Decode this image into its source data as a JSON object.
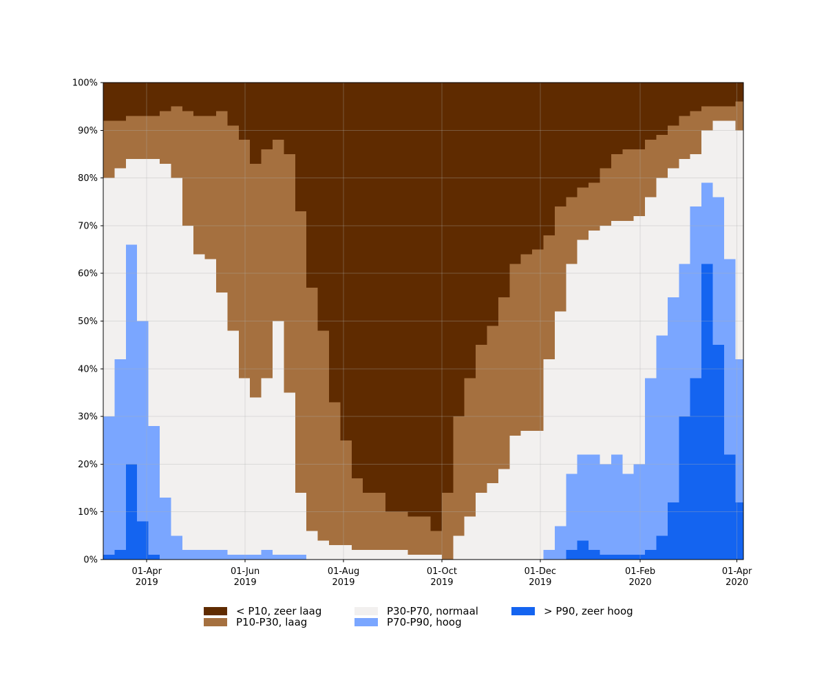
{
  "chart_data": {
    "type": "area",
    "stacked": true,
    "step": true,
    "grid": true,
    "legend": "below",
    "x": [
      "2019-03-05",
      "2019-03-12",
      "2019-03-19",
      "2019-03-26",
      "2019-04-02",
      "2019-04-09",
      "2019-04-16",
      "2019-04-23",
      "2019-04-30",
      "2019-05-07",
      "2019-05-14",
      "2019-05-21",
      "2019-05-28",
      "2019-06-04",
      "2019-06-11",
      "2019-06-18",
      "2019-06-25",
      "2019-07-02",
      "2019-07-09",
      "2019-07-16",
      "2019-07-23",
      "2019-07-30",
      "2019-08-06",
      "2019-08-13",
      "2019-08-20",
      "2019-08-27",
      "2019-09-03",
      "2019-09-10",
      "2019-09-17",
      "2019-09-24",
      "2019-10-01",
      "2019-10-08",
      "2019-10-15",
      "2019-10-22",
      "2019-10-29",
      "2019-11-05",
      "2019-11-12",
      "2019-11-19",
      "2019-11-26",
      "2019-12-03",
      "2019-12-10",
      "2019-12-17",
      "2019-12-24",
      "2019-12-31",
      "2020-01-07",
      "2020-01-14",
      "2020-01-21",
      "2020-01-28",
      "2020-02-04",
      "2020-02-11",
      "2020-02-18",
      "2020-02-25",
      "2020-03-03",
      "2020-03-10",
      "2020-03-17",
      "2020-03-24",
      "2020-03-31"
    ],
    "xlim": [
      "2019-03-05",
      "2020-04-05"
    ],
    "xticks": [
      {
        "value": "2019-04-01",
        "label": "01-Apr\n2019"
      },
      {
        "value": "2019-06-01",
        "label": "01-Jun\n2019"
      },
      {
        "value": "2019-08-01",
        "label": "01-Aug\n2019"
      },
      {
        "value": "2019-10-01",
        "label": "01-Oct\n2019"
      },
      {
        "value": "2019-12-01",
        "label": "01-Dec\n2019"
      },
      {
        "value": "2020-02-01",
        "label": "01-Feb\n2020"
      },
      {
        "value": "2020-04-01",
        "label": "01-Apr\n2020"
      }
    ],
    "ylim": [
      0,
      100
    ],
    "yticks": [
      {
        "value": 0,
        "label": "0%"
      },
      {
        "value": 10,
        "label": "10%"
      },
      {
        "value": 20,
        "label": "20%"
      },
      {
        "value": 30,
        "label": "30%"
      },
      {
        "value": 40,
        "label": "40%"
      },
      {
        "value": 50,
        "label": "50%"
      },
      {
        "value": 60,
        "label": "60%"
      },
      {
        "value": 70,
        "label": "70%"
      },
      {
        "value": 80,
        "label": "80%"
      },
      {
        "value": 90,
        "label": "90%"
      },
      {
        "value": 100,
        "label": "100%"
      }
    ],
    "series": [
      {
        "name": "< P10, zeer laag",
        "color": "#5f2b00",
        "values": [
          8,
          8,
          7,
          7,
          7,
          6,
          5,
          6,
          7,
          7,
          6,
          9,
          12,
          17,
          14,
          12,
          15,
          27,
          43,
          52,
          67,
          75,
          83,
          86,
          86,
          90,
          90,
          91,
          91,
          94,
          86,
          70,
          62,
          55,
          51,
          45,
          38,
          36,
          35,
          32,
          26,
          24,
          22,
          21,
          18,
          15,
          14,
          14,
          12,
          11,
          9,
          7,
          6,
          5,
          5,
          5,
          4
        ]
      },
      {
        "name": "P10-P30, laag",
        "color": "#a5703f",
        "values": [
          12,
          10,
          9,
          9,
          9,
          11,
          15,
          24,
          29,
          30,
          38,
          43,
          50,
          49,
          48,
          38,
          50,
          59,
          51,
          44,
          30,
          22,
          15,
          12,
          12,
          8,
          8,
          8,
          8,
          5,
          14,
          25,
          29,
          31,
          33,
          36,
          36,
          37,
          38,
          26,
          22,
          14,
          11,
          10,
          12,
          14,
          15,
          14,
          12,
          9,
          9,
          9,
          9,
          5,
          3,
          3,
          6
        ]
      },
      {
        "name": "P30-P70, normaal",
        "color": "#f2f0ef",
        "values": [
          50,
          40,
          18,
          34,
          56,
          70,
          75,
          68,
          62,
          61,
          54,
          47,
          37,
          33,
          36,
          49,
          34,
          13,
          6,
          4,
          3,
          3,
          2,
          2,
          2,
          2,
          2,
          1,
          1,
          1,
          0,
          5,
          9,
          14,
          16,
          19,
          26,
          27,
          27,
          40,
          45,
          44,
          45,
          47,
          50,
          49,
          53,
          52,
          38,
          33,
          27,
          22,
          11,
          11,
          16,
          29,
          48
        ]
      },
      {
        "name": "P70-P90, hoog",
        "color": "#7aa6ff",
        "values": [
          29,
          40,
          46,
          42,
          27,
          13,
          5,
          2,
          2,
          2,
          2,
          1,
          1,
          1,
          2,
          1,
          1,
          1,
          0,
          0,
          0,
          0,
          0,
          0,
          0,
          0,
          0,
          0,
          0,
          0,
          0,
          0,
          0,
          0,
          0,
          0,
          0,
          0,
          0,
          2,
          7,
          16,
          18,
          20,
          19,
          21,
          17,
          19,
          36,
          42,
          43,
          32,
          36,
          17,
          31,
          41,
          30
        ]
      },
      {
        "name": "> P90, zeer hoog",
        "color": "#1464f0",
        "values": [
          1,
          2,
          20,
          8,
          1,
          0,
          0,
          0,
          0,
          0,
          0,
          0,
          0,
          0,
          0,
          0,
          0,
          0,
          0,
          0,
          0,
          0,
          0,
          0,
          0,
          0,
          0,
          0,
          0,
          0,
          0,
          0,
          0,
          0,
          0,
          0,
          0,
          0,
          0,
          0,
          0,
          2,
          4,
          2,
          1,
          1,
          1,
          1,
          2,
          5,
          12,
          30,
          38,
          62,
          45,
          22,
          12
        ]
      }
    ]
  }
}
